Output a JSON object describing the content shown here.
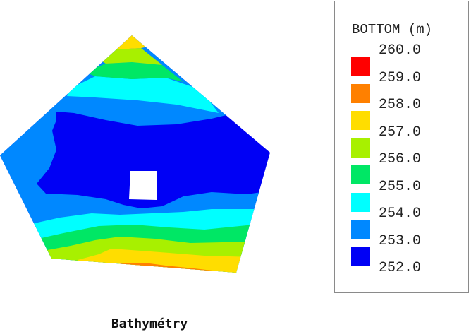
{
  "chart_data": {
    "type": "filled-contour",
    "title": "",
    "caption": "Bathymétry",
    "legend": {
      "title": "BOTTOM (m)",
      "position": "right",
      "levels": [
        "260.0",
        "259.0",
        "258.0",
        "257.0",
        "256.0",
        "255.0",
        "254.0",
        "253.0",
        "252.0"
      ],
      "bands": [
        {
          "from": 259.0,
          "to": 260.0,
          "color": "#ff0000"
        },
        {
          "from": 258.0,
          "to": 259.0,
          "color": "#ff8000"
        },
        {
          "from": 257.0,
          "to": 258.0,
          "color": "#ffdd00"
        },
        {
          "from": 256.0,
          "to": 257.0,
          "color": "#a8f000"
        },
        {
          "from": 255.0,
          "to": 256.0,
          "color": "#00e765"
        },
        {
          "from": 254.0,
          "to": 255.0,
          "color": "#00ffff"
        },
        {
          "from": 253.0,
          "to": 254.0,
          "color": "#0088ff"
        },
        {
          "from": 252.0,
          "to": 253.0,
          "color": "#0000f5"
        }
      ]
    },
    "grid": false,
    "colors": {
      "red": "#ff0000",
      "orange": "#ff8000",
      "yellow": "#ffdd00",
      "yellowgreen": "#a8f000",
      "green": "#00e765",
      "cyan": "#00ffff",
      "midblue": "#0088ff",
      "deepblue": "#0000f5"
    }
  }
}
